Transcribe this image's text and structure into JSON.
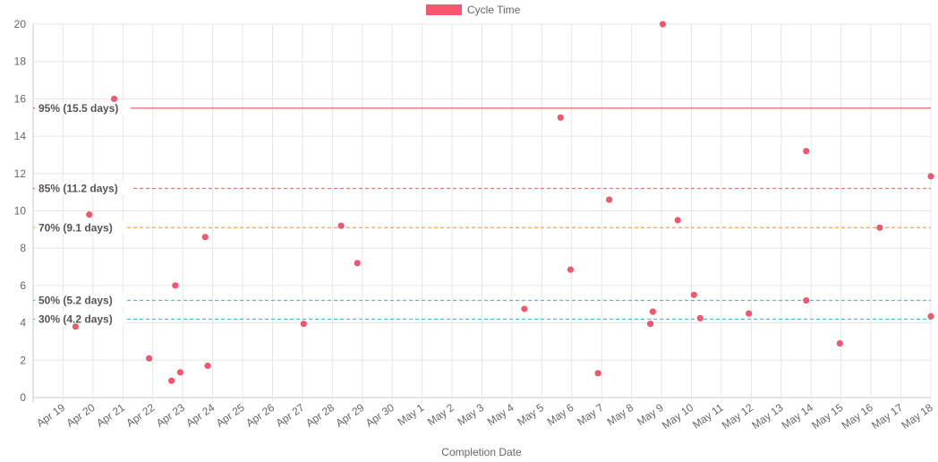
{
  "chart_data": {
    "type": "scatter",
    "xlabel": "Completion Date",
    "ylabel": "",
    "ylim": [
      0,
      20
    ],
    "y_ticks": [
      0,
      2,
      4,
      6,
      8,
      10,
      12,
      14,
      16,
      18,
      20
    ],
    "x_range": [
      "2023-04-18",
      "2023-05-18"
    ],
    "x_ticks": [
      "Apr 19",
      "Apr 20",
      "Apr 21",
      "Apr 22",
      "Apr 23",
      "Apr 24",
      "Apr 25",
      "Apr 26",
      "Apr 27",
      "Apr 28",
      "Apr 29",
      "Apr 30",
      "May 1",
      "May 2",
      "May 3",
      "May 4",
      "May 5",
      "May 6",
      "May 7",
      "May 8",
      "May 9",
      "May 10",
      "May 11",
      "May 12",
      "May 13",
      "May 14",
      "May 15",
      "May 16",
      "May 17",
      "May 18"
    ],
    "grid": true,
    "legend": {
      "position": "top-center",
      "entries": [
        {
          "label": "Cycle Time",
          "color": "#f7566e"
        }
      ]
    },
    "series": [
      {
        "name": "Cycle Time",
        "color": "#f7566e",
        "points": [
          {
            "x": "2023-04-19 10:00",
            "y": 3.8
          },
          {
            "x": "2023-04-19 21:00",
            "y": 9.8
          },
          {
            "x": "2023-04-20 17:00",
            "y": 16.0
          },
          {
            "x": "2023-04-21 21:00",
            "y": 2.1
          },
          {
            "x": "2023-04-22 15:00",
            "y": 0.9
          },
          {
            "x": "2023-04-22 18:00",
            "y": 6.0
          },
          {
            "x": "2023-04-22 22:00",
            "y": 1.35
          },
          {
            "x": "2023-04-23 18:00",
            "y": 8.6
          },
          {
            "x": "2023-04-23 20:00",
            "y": 1.7
          },
          {
            "x": "2023-04-27 01:00",
            "y": 3.95
          },
          {
            "x": "2023-04-28 07:00",
            "y": 9.2
          },
          {
            "x": "2023-04-28 20:00",
            "y": 7.2
          },
          {
            "x": "2023-05-04 10:00",
            "y": 4.75
          },
          {
            "x": "2023-05-05 15:00",
            "y": 15.0
          },
          {
            "x": "2023-05-05 23:00",
            "y": 6.85
          },
          {
            "x": "2023-05-06 21:00",
            "y": 1.3
          },
          {
            "x": "2023-05-07 06:00",
            "y": 10.6
          },
          {
            "x": "2023-05-08 15:00",
            "y": 3.95
          },
          {
            "x": "2023-05-08 17:00",
            "y": 4.6
          },
          {
            "x": "2023-05-09 01:00",
            "y": 20.0
          },
          {
            "x": "2023-05-09 13:00",
            "y": 9.5
          },
          {
            "x": "2023-05-10 02:00",
            "y": 5.5
          },
          {
            "x": "2023-05-10 07:00",
            "y": 4.25
          },
          {
            "x": "2023-05-11 22:00",
            "y": 4.5
          },
          {
            "x": "2023-05-13 20:00",
            "y": 13.2
          },
          {
            "x": "2023-05-13 20:00",
            "y": 5.2
          },
          {
            "x": "2023-05-14 23:00",
            "y": 2.9
          },
          {
            "x": "2023-05-16 07:00",
            "y": 9.1
          },
          {
            "x": "2023-05-18 00:00",
            "y": 11.85
          },
          {
            "x": "2023-05-18 00:00",
            "y": 4.35
          }
        ]
      }
    ],
    "percentile_lines": [
      {
        "label": "95% (15.5 days)",
        "value": 15.5,
        "color": "#e0555c",
        "style": "solid"
      },
      {
        "label": "85% (11.2 days)",
        "value": 11.2,
        "color": "#e8767a",
        "style": "dashed"
      },
      {
        "label": "70% (9.1 days)",
        "value": 9.1,
        "color": "#f2a25e",
        "style": "dashed"
      },
      {
        "label": "50% (5.2 days)",
        "value": 5.2,
        "color": "#52b2df",
        "style": "dashed"
      },
      {
        "label": "30% (4.2 days)",
        "value": 4.2,
        "color": "#52b2df",
        "style": "dashed"
      }
    ]
  }
}
